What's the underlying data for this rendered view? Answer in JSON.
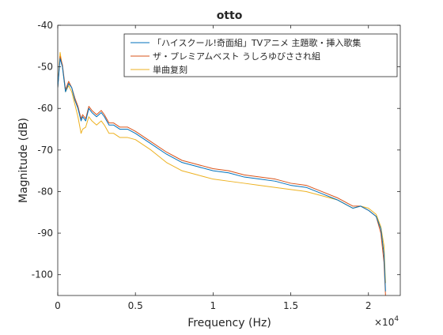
{
  "colors": {
    "series1": "#0072BD",
    "series2": "#D95319",
    "series3": "#EDB120",
    "axis": "#262626",
    "background": "#ffffff"
  },
  "chart_data": {
    "type": "line",
    "title": "otto",
    "xlabel": "Frequency (Hz)",
    "ylabel": "Magnitude (dB)",
    "x_exponent_label": "×10",
    "x_exponent_power": "4",
    "xlim": [
      0,
      22050
    ],
    "ylim": [
      -105,
      -40
    ],
    "grid": false,
    "legend_position": "top-right",
    "x_ticks": [
      0,
      5000,
      10000,
      15000,
      20000
    ],
    "x_tick_labels": [
      "0",
      "0.5",
      "1",
      "1.5",
      "2"
    ],
    "y_ticks": [
      -40,
      -50,
      -60,
      -70,
      -80,
      -90,
      -100
    ],
    "y_tick_labels": [
      "-40",
      "-50",
      "-60",
      "-70",
      "-80",
      "-90",
      "-100"
    ],
    "x": [
      0,
      150,
      300,
      500,
      700,
      900,
      1100,
      1300,
      1500,
      1600,
      1800,
      2000,
      2200,
      2500,
      2800,
      3000,
      3300,
      3600,
      4000,
      4500,
      5000,
      6000,
      7000,
      8000,
      9000,
      10000,
      11000,
      12000,
      13000,
      14000,
      15000,
      16000,
      17000,
      18000,
      19000,
      19500,
      20000,
      20500,
      20800,
      21000,
      21100
    ],
    "series": [
      {
        "name": "「ハイスクール!奇面組」TVアニメ 主題歌・挿入歌集",
        "values": [
          -55,
          -48,
          -50,
          -56,
          -54,
          -55,
          -58,
          -60,
          -63,
          -62,
          -63,
          -60,
          -61,
          -62,
          -61,
          -62,
          -64,
          -64,
          -65,
          -65,
          -66,
          -68.5,
          -71,
          -73,
          -74,
          -75,
          -75.5,
          -76.5,
          -77,
          -77.5,
          -78.5,
          -79,
          -80.5,
          -82,
          -84,
          -83.5,
          -84.5,
          -86,
          -89,
          -95,
          -104
        ]
      },
      {
        "name": "ザ・プレミアムベスト うしろゆびさされ組",
        "values": [
          -55,
          -47.5,
          -49.5,
          -55.5,
          -53.5,
          -55,
          -57.5,
          -59.5,
          -62.5,
          -61.5,
          -62.5,
          -59.5,
          -60.5,
          -61.5,
          -60.5,
          -61.5,
          -63.5,
          -63.5,
          -64.5,
          -64.5,
          -65.5,
          -68,
          -70.5,
          -72.5,
          -73.5,
          -74.5,
          -75,
          -76,
          -76.5,
          -77,
          -78,
          -78.5,
          -80,
          -81.5,
          -83.5,
          -83.5,
          -84.5,
          -86,
          -90,
          -97,
          -105
        ]
      },
      {
        "name": "単曲复刻",
        "values": [
          -55,
          -46.5,
          -50,
          -56,
          -54.5,
          -56,
          -59,
          -62,
          -66,
          -65,
          -64.5,
          -62,
          -63,
          -64,
          -63,
          -64,
          -66,
          -66,
          -67,
          -67,
          -67.5,
          -70,
          -73,
          -75,
          -76,
          -77,
          -77.5,
          -78,
          -78.5,
          -79,
          -79.5,
          -80,
          -81,
          -82,
          -84,
          -83.5,
          -84,
          -85.5,
          -88.5,
          -93,
          -102
        ]
      }
    ]
  }
}
